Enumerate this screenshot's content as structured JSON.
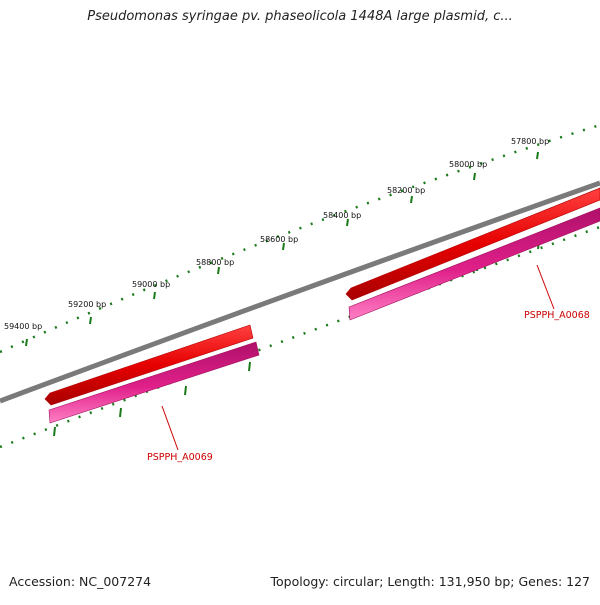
{
  "title": "Pseudomonas syringae pv. phaseolicola 1448A large plasmid, c...",
  "footer": {
    "accession": "Accession: NC_007274",
    "summary": "Topology: circular; Length: 131,950 bp; Genes: 127"
  },
  "ticks": [
    {
      "label": "57800 bp"
    },
    {
      "label": "58000 bp"
    },
    {
      "label": "58200 bp"
    },
    {
      "label": "58400 bp"
    },
    {
      "label": "58600 bp"
    },
    {
      "label": "58800 bp"
    },
    {
      "label": "59000 bp"
    },
    {
      "label": "59200 bp"
    },
    {
      "label": "59400 bp"
    }
  ],
  "genes": [
    {
      "name": "PSPPH_A0068"
    },
    {
      "name": "PSPPH_A0069"
    }
  ],
  "colors": {
    "backbone": "#7a7a7a",
    "gene_arrow": "#e60000",
    "cds": "#e0208a",
    "tick": "#1a7a1a",
    "gene_label": "#cc0000"
  }
}
